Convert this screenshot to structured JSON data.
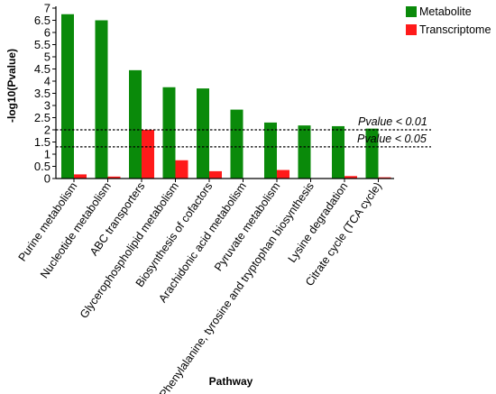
{
  "chart_data": {
    "type": "bar",
    "categories": [
      "Purine metabolism",
      "Nucleotide metabolism",
      "ABC transporters",
      "Glycerophospholipid metabolism",
      "Biosynthesis of cofactors",
      "Arachidonic acid metabolism",
      "Pyruvate metabolism",
      "Phenylalanine, tyrosine and tryptophan biosynthesis",
      "Lysine degradation",
      "Citrate cycle (TCA cycle)"
    ],
    "series": [
      {
        "name": "Metabolite",
        "color": "#0a8a0a",
        "values": [
          6.75,
          6.5,
          4.45,
          3.75,
          3.7,
          2.83,
          2.3,
          2.18,
          2.15,
          2.05
        ]
      },
      {
        "name": "Transcriptome",
        "color": "#ff1a1a",
        "values": [
          0.17,
          0.08,
          2.0,
          0.75,
          0.3,
          0.0,
          0.35,
          0.0,
          0.1,
          0.05
        ]
      }
    ],
    "xlabel": "Pathway",
    "ylabel": "-log10(Pvalue)",
    "ylim": [
      0,
      7
    ],
    "yticks": [
      "0",
      "0.5",
      "1",
      "1.5",
      "2",
      "2.5",
      "3",
      "3.5",
      "4",
      "4.5",
      "5",
      "5.5",
      "6",
      "6.5",
      "7"
    ],
    "legend_position": "top-right",
    "grid": false,
    "reference_lines": [
      {
        "label": "Pvalue < 0.01",
        "value": 2.0
      },
      {
        "label": "Pvalue < 0.05",
        "value": 1.3
      }
    ]
  }
}
